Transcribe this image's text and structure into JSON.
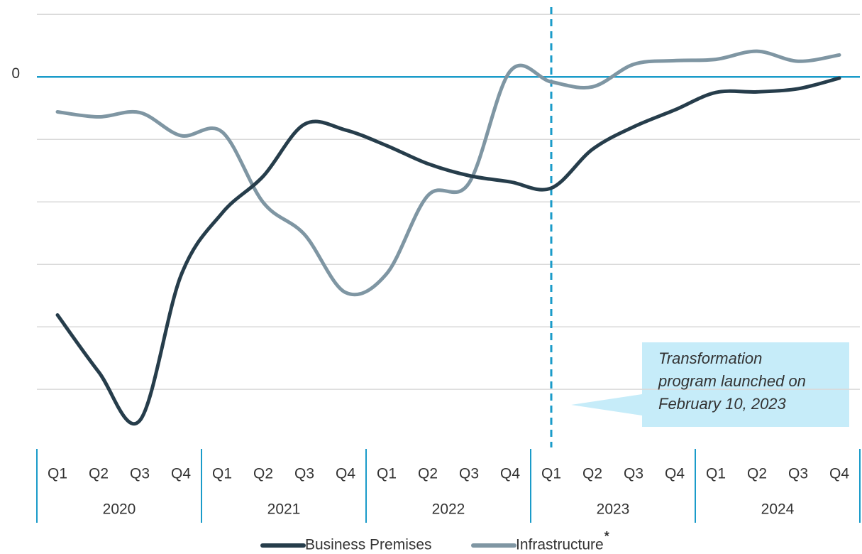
{
  "chart_data": {
    "type": "line",
    "categories": [
      "Q1",
      "Q2",
      "Q3",
      "Q4",
      "Q1",
      "Q2",
      "Q3",
      "Q4",
      "Q1",
      "Q2",
      "Q3",
      "Q4",
      "Q1",
      "Q2",
      "Q3",
      "Q4",
      "Q1",
      "Q2",
      "Q3",
      "Q4"
    ],
    "groups": [
      "2020",
      "2021",
      "2022",
      "2023",
      "2024"
    ],
    "series": [
      {
        "name": "Business Premises",
        "color": "#263d4b",
        "values": [
          -3.81,
          -4.72,
          -5.5,
          -3.18,
          -2.18,
          -1.59,
          -0.76,
          -0.85,
          -1.1,
          -1.39,
          -1.58,
          -1.68,
          -1.78,
          -1.16,
          -0.8,
          -0.53,
          -0.25,
          -0.24,
          -0.19,
          -0.02
        ]
      },
      {
        "name": "Infrastructure",
        "color": "#7f96a3",
        "values": [
          -0.56,
          -0.64,
          -0.57,
          -0.94,
          -0.88,
          -2.01,
          -2.52,
          -3.45,
          -3.15,
          -1.9,
          -1.7,
          0.09,
          -0.08,
          -0.16,
          0.2,
          0.26,
          0.28,
          0.41,
          0.25,
          0.35
        ]
      }
    ],
    "footnote_marker": "*",
    "ylim": [
      -5.93,
      1.23
    ],
    "yticks": [
      0
    ],
    "ygrid": [
      1,
      -1,
      -2,
      -3,
      -4,
      -5
    ],
    "zero_line_color": "#1a9bc9",
    "annotation": {
      "category_index": 12,
      "lines": [
        "Transformation",
        "program launched on",
        "February 10, 2023"
      ]
    }
  }
}
